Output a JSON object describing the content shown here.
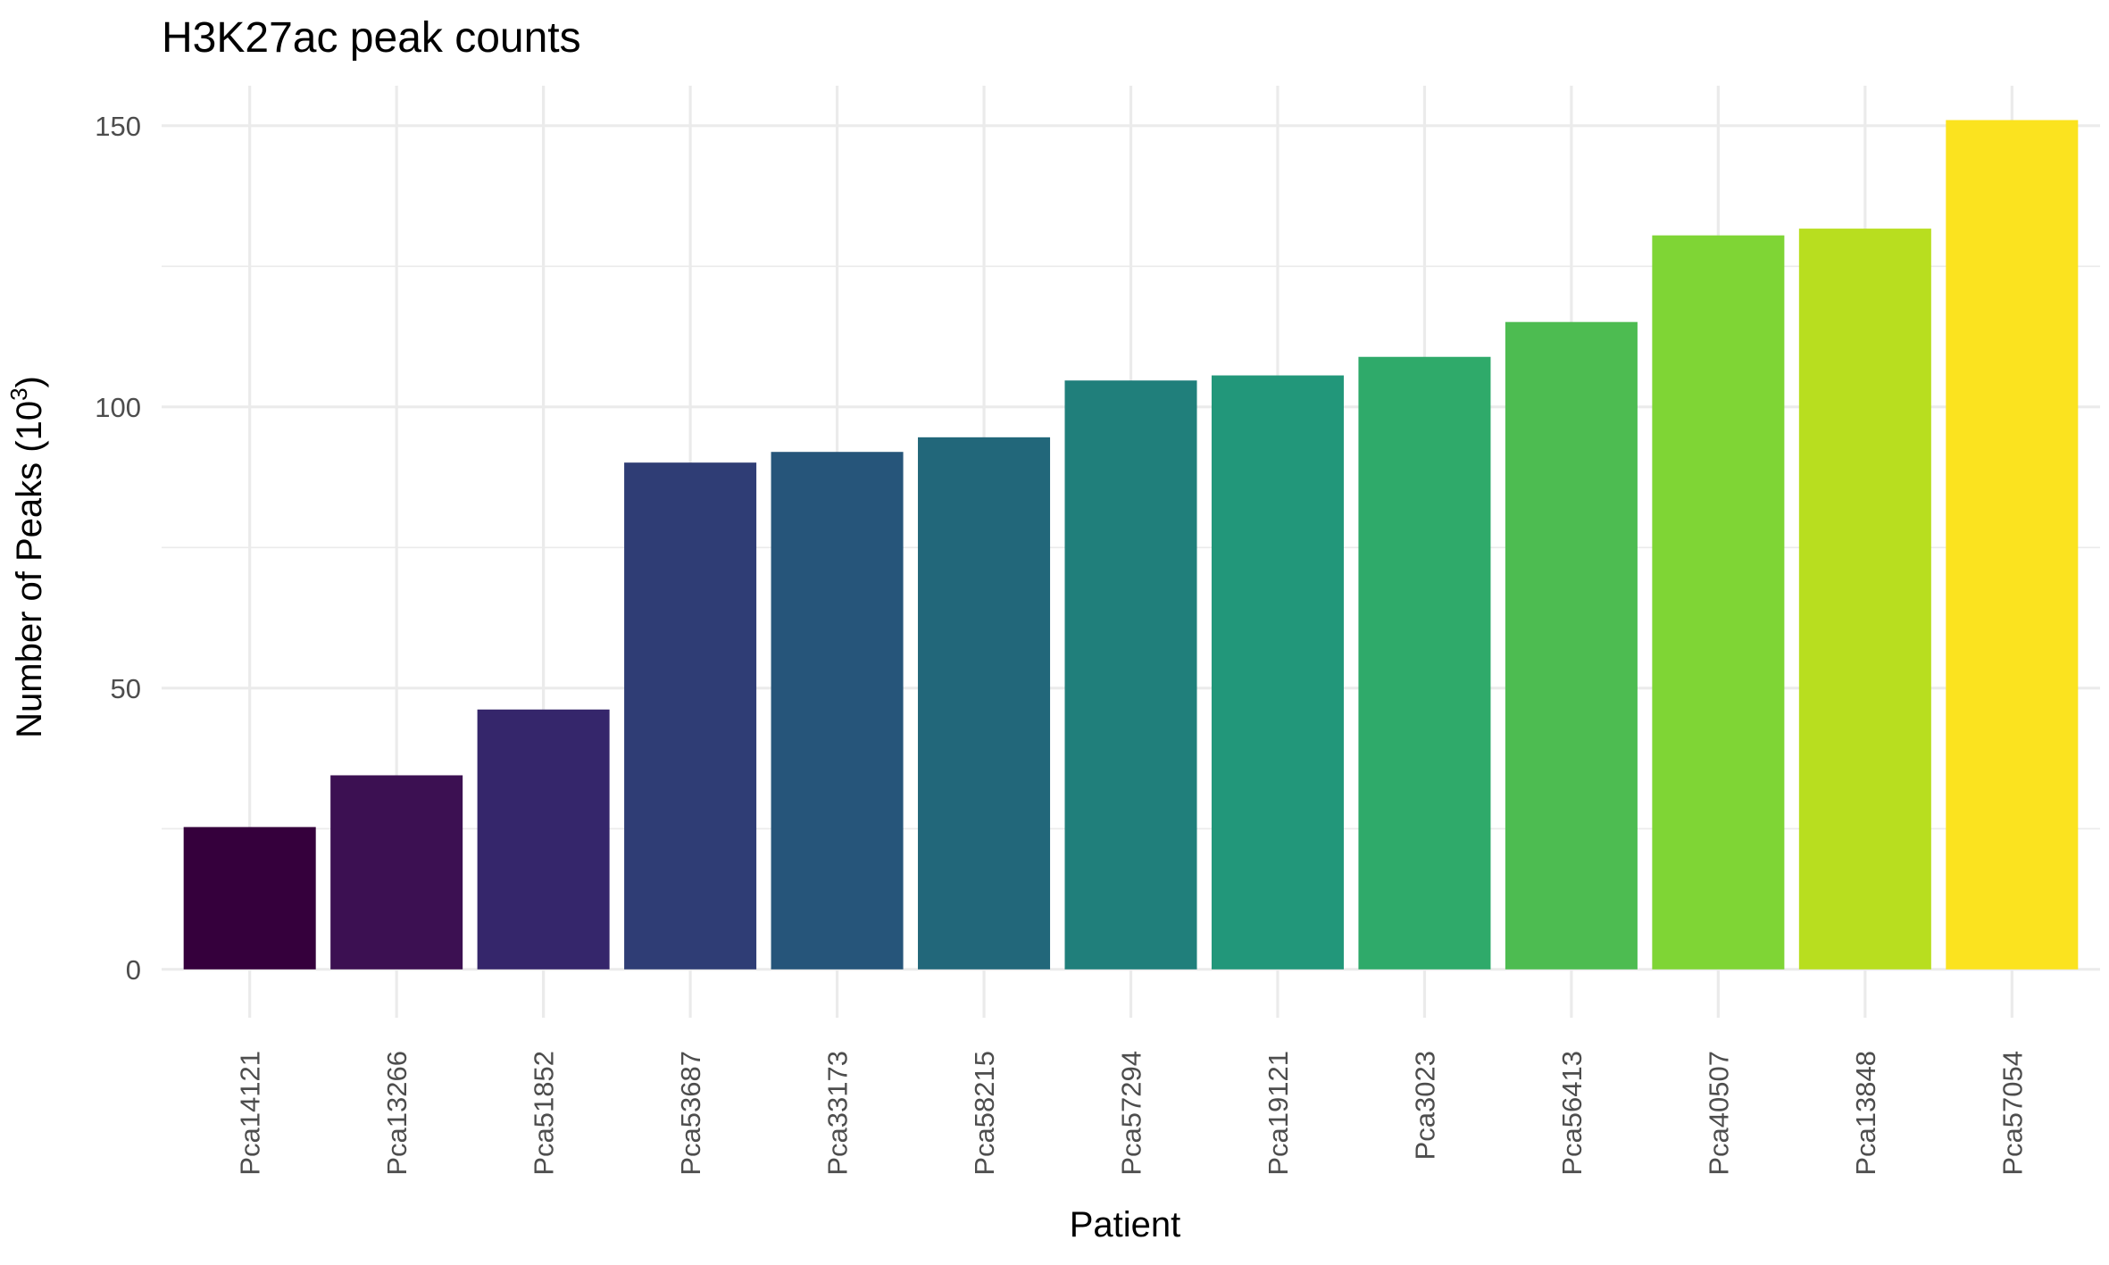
{
  "chart_data": {
    "type": "bar",
    "title": "H3K27ac peak counts",
    "xlabel": "Patient",
    "ylabel_main": "Number of Peaks (10",
    "ylabel_sup": "3",
    "ylabel_end": ")",
    "categories": [
      "Pca14121",
      "Pca13266",
      "Pca51852",
      "Pca53687",
      "Pca33173",
      "Pca58215",
      "Pca57294",
      "Pca19121",
      "Pca3023",
      "Pca56413",
      "Pca40507",
      "Pca13848",
      "Pca57054"
    ],
    "values": [
      25.3,
      34.5,
      46.2,
      90.1,
      92.0,
      94.6,
      104.7,
      105.6,
      108.9,
      115.1,
      130.5,
      131.7,
      151.0
    ],
    "colors": [
      "#35003c",
      "#3c1052",
      "#35266b",
      "#2f3d75",
      "#26557a",
      "#22677a",
      "#207f7b",
      "#22977a",
      "#2faa6a",
      "#4dbc51",
      "#7fd535",
      "#b8de1f",
      "#fbe31f"
    ],
    "yticks": [
      0,
      50,
      100,
      150
    ],
    "ylim": [
      -8.6,
      158.7
    ],
    "grid": true,
    "legend": "none"
  }
}
